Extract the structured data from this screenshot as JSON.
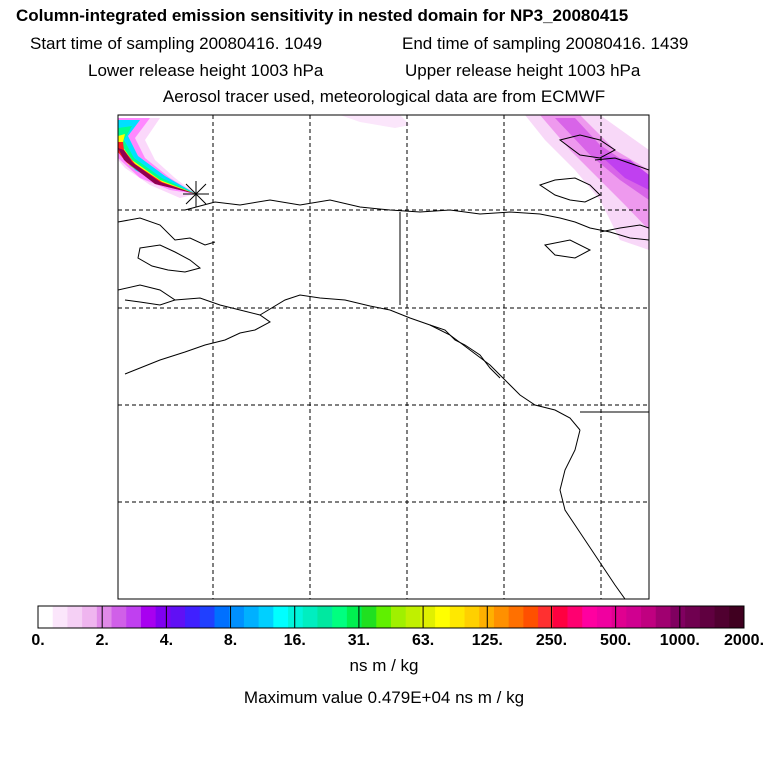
{
  "header": {
    "title": "Column-integrated emission sensitivity in nested domain for NP3_20080415",
    "start_time": "Start time of sampling 20080416.  1049",
    "end_time": "End time of sampling 20080416.  1439",
    "lower_release": "Lower release height 1003 hPa",
    "upper_release": "Upper release height 1003 hPa",
    "tracer_line": "Aerosol tracer used, meteorological data are from ECMWF"
  },
  "colorbar": {
    "tick_labels": [
      "0.",
      "2.",
      "4.",
      "8.",
      "16.",
      "31.",
      "63.",
      "125.",
      "250.",
      "500.",
      "1000.",
      "2000."
    ],
    "colors": [
      "#ffffff",
      "#fbe6fb",
      "#f5d0f5",
      "#efb5ef",
      "#e08ae8",
      "#d060e8",
      "#c040f0",
      "#a800f0",
      "#8000f0",
      "#6010f5",
      "#4020ff",
      "#2040ff",
      "#0070ff",
      "#0090ff",
      "#00b0ff",
      "#00d0ff",
      "#00ffff",
      "#00f5dc",
      "#00eec0",
      "#00e8a0",
      "#00ff80",
      "#00f050",
      "#20e020",
      "#60f000",
      "#a0f000",
      "#c0f000",
      "#e0f000",
      "#ffff00",
      "#ffe800",
      "#ffd000",
      "#ffb000",
      "#ff9000",
      "#ff7000",
      "#ff5000",
      "#ff3030",
      "#ff0040",
      "#ff0070",
      "#ff00a0",
      "#f000a0",
      "#e00090",
      "#d00090",
      "#c00080",
      "#a00070",
      "#800060",
      "#700050",
      "#600040",
      "#500030",
      "#400020"
    ],
    "unit": "ns m / kg"
  },
  "footer": {
    "max_value": "Maximum value  0.479E+04 ns m / kg"
  },
  "map": {
    "release_marker": "release-point",
    "plume_colors": [
      "#ff00ff",
      "#cc00cc",
      "#00ffff",
      "#00ff80",
      "#ffff00",
      "#ff0000",
      "#800040"
    ],
    "graticule": "dashed"
  }
}
